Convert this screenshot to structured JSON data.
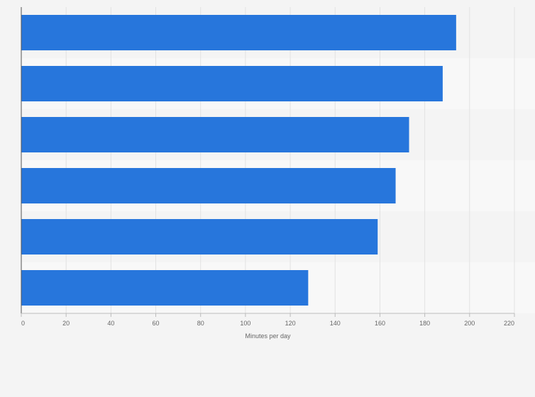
{
  "chart_data": {
    "type": "bar",
    "orientation": "horizontal",
    "categories": [
      "",
      "",
      "",
      "",
      "",
      ""
    ],
    "values": [
      194,
      188,
      173,
      167,
      159,
      128
    ],
    "xlabel": "Minutes per day",
    "ylabel": "",
    "xlim": [
      0,
      220
    ],
    "x_ticks": [
      0,
      20,
      40,
      60,
      80,
      100,
      120,
      140,
      160,
      180,
      200,
      220
    ],
    "grid": true,
    "legend": "none",
    "bar_color": "#2776dc",
    "band_colors": [
      "#f4f4f4",
      "#f8f8f8"
    ]
  }
}
